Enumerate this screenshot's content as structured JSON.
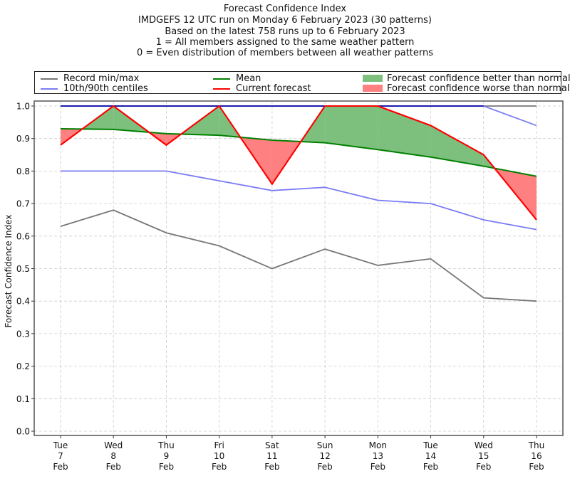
{
  "chart_data": {
    "type": "line",
    "title_lines": [
      "Forecast Confidence Index",
      "IMDGEFS 12 UTC run on Monday 6 February 2023 (30 patterns)",
      "Based on the latest 758 runs up to 6 February 2023",
      "1 = All members assigned to the same weather pattern",
      "0 = Even distribution of members between all weather patterns"
    ],
    "ylabel": "Forecast Confidence Index",
    "xlabel": "",
    "ylim": [
      0.0,
      1.0
    ],
    "yticks": [
      "0.0",
      "0.1",
      "0.2",
      "0.3",
      "0.4",
      "0.5",
      "0.6",
      "0.7",
      "0.8",
      "0.9",
      "1.0"
    ],
    "categories": [
      [
        "Tue",
        "7",
        "Feb"
      ],
      [
        "Wed",
        "8",
        "Feb"
      ],
      [
        "Thu",
        "9",
        "Feb"
      ],
      [
        "Fri",
        "10",
        "Feb"
      ],
      [
        "Sat",
        "11",
        "Feb"
      ],
      [
        "Sun",
        "12",
        "Feb"
      ],
      [
        "Mon",
        "13",
        "Feb"
      ],
      [
        "Tue",
        "14",
        "Feb"
      ],
      [
        "Wed",
        "15",
        "Feb"
      ],
      [
        "Thu",
        "16",
        "Feb"
      ]
    ],
    "grid": true,
    "legend_position": "top",
    "series": [
      {
        "name": "Record max",
        "values": [
          1.0,
          1.0,
          1.0,
          1.0,
          1.0,
          1.0,
          1.0,
          1.0,
          1.0,
          1.0
        ],
        "color": "#777777"
      },
      {
        "name": "Record min",
        "values": [
          0.63,
          0.68,
          0.61,
          0.57,
          0.5,
          0.56,
          0.51,
          0.53,
          0.41,
          0.4
        ],
        "color": "#777777"
      },
      {
        "name": "90th centile",
        "values": [
          1.0,
          1.0,
          1.0,
          1.0,
          1.0,
          1.0,
          1.0,
          1.0,
          1.0,
          0.94
        ],
        "color": "#7b7bf5"
      },
      {
        "name": "10th centile",
        "values": [
          0.8,
          0.8,
          0.8,
          0.77,
          0.74,
          0.75,
          0.71,
          0.7,
          0.65,
          0.62
        ],
        "color": "#7b7bf5"
      },
      {
        "name": "Mean",
        "values": [
          0.93,
          0.928,
          0.915,
          0.91,
          0.895,
          0.887,
          0.866,
          0.843,
          0.815,
          0.784
        ],
        "color": "#008000"
      },
      {
        "name": "Current forecast",
        "values": [
          0.88,
          1.0,
          0.88,
          1.0,
          0.76,
          1.0,
          1.0,
          0.94,
          0.85,
          0.65
        ],
        "color": "#ff0000"
      }
    ],
    "upper_overlap_color": "#1a1aaa",
    "fill_better_color": "#7dc07d",
    "fill_worse_color": "#ff8080",
    "legend": [
      {
        "label": "Record min/max",
        "kind": "line",
        "color": "#777777"
      },
      {
        "label": "10th/90th centiles",
        "kind": "line",
        "color": "#7b7bf5"
      },
      {
        "label": "Mean",
        "kind": "line",
        "color": "#008000"
      },
      {
        "label": "Current forecast",
        "kind": "line",
        "color": "#ff0000"
      },
      {
        "label": "Forecast confidence better than normal",
        "kind": "patch",
        "color": "#7dc07d"
      },
      {
        "label": "Forecast confidence worse than normal",
        "kind": "patch",
        "color": "#ff8080"
      }
    ]
  }
}
